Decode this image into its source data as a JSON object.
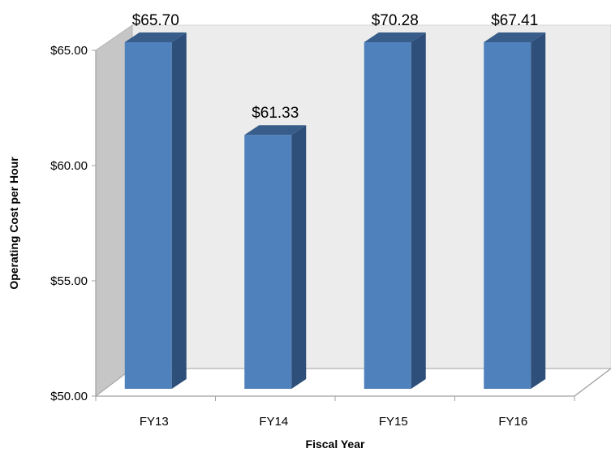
{
  "chart_data": {
    "type": "bar",
    "style": "3d-column",
    "categories": [
      "FY13",
      "FY14",
      "FY15",
      "FY16"
    ],
    "values": [
      65.7,
      61.33,
      70.28,
      67.41
    ],
    "data_labels": [
      "$65.70",
      "$61.33",
      "$70.28",
      "$67.41"
    ],
    "ylim": [
      50,
      65
    ],
    "yticks": [
      50,
      55,
      60,
      65
    ],
    "ytick_labels": [
      "$50.00",
      "$55.00",
      "$60.00",
      "$65.00"
    ],
    "title": "",
    "xlabel": "Fiscal Year",
    "ylabel": "Operating Cost per Hour",
    "grid": false,
    "legend": "none",
    "colors": {
      "bar_front": "#4f81bd",
      "bar_side": "#2e4f7a",
      "bar_top": "#385d8a",
      "back_wall": "#ececec",
      "side_wall": "#c6c6c6",
      "floor": "#ffffff",
      "axis_line": "#a0a0a0"
    }
  }
}
